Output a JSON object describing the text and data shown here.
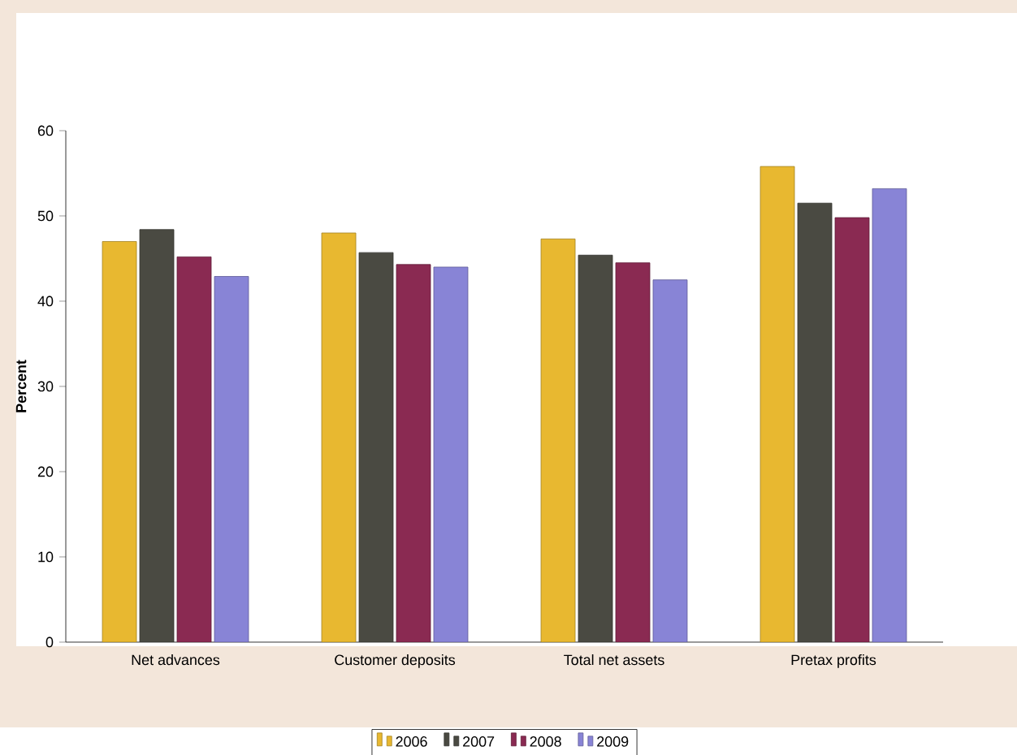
{
  "chart_data": {
    "type": "bar",
    "ylabel": "Percent",
    "categories": [
      "Net advances",
      "Customer deposits",
      "Total net assets",
      "Pretax profits"
    ],
    "series": [
      {
        "name": "2006",
        "color": "#e8b830",
        "values": [
          47.0,
          48.0,
          47.3,
          55.8
        ]
      },
      {
        "name": "2007",
        "color": "#4a4a42",
        "values": [
          48.4,
          45.7,
          45.4,
          51.5
        ]
      },
      {
        "name": "2008",
        "color": "#8a2a52",
        "values": [
          45.2,
          44.3,
          44.5,
          49.8
        ]
      },
      {
        "name": "2009",
        "color": "#8884d6",
        "values": [
          42.9,
          44.0,
          42.5,
          53.2
        ]
      }
    ],
    "ylim": [
      0,
      60
    ],
    "yticks": [
      0,
      10,
      20,
      30,
      40,
      50,
      60
    ],
    "grid": false,
    "legend": "bottom"
  }
}
